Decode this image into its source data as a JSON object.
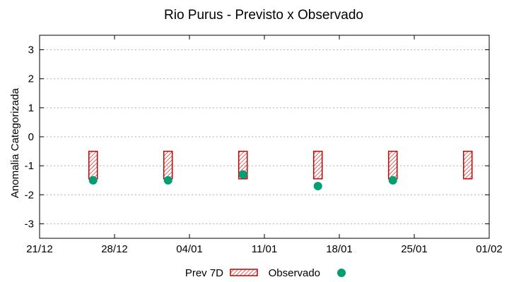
{
  "chart_data": {
    "type": "bar",
    "title": "Rio Purus - Previsto x Observado",
    "xlabel": "",
    "ylabel": "Anomalia Categorizada",
    "ylim": [
      -3.5,
      3.5
    ],
    "yticks": [
      3,
      2,
      1,
      0,
      -1,
      -2,
      -3
    ],
    "ytick_labels": [
      "3",
      "2",
      "1",
      "0",
      "-1",
      "-2",
      "-3"
    ],
    "xlim": [
      "2023-12-21",
      "2024-02-01"
    ],
    "xtick_labels": [
      "21/12",
      "28/12",
      "04/01",
      "11/01",
      "18/01",
      "25/01",
      "01/02"
    ],
    "grid": true,
    "legend_position": "bottom",
    "series": [
      {
        "name": "Prev 7D",
        "kind": "floating-bar",
        "color": "#cc0000",
        "fill": "hatched",
        "x": [
          "2023-12-26",
          "2024-01-02",
          "2024-01-09",
          "2024-01-16",
          "2024-01-23",
          "2024-01-30"
        ],
        "low": [
          -1.45,
          -1.45,
          -1.45,
          -1.45,
          -1.45,
          -1.45
        ],
        "high": [
          -0.5,
          -0.5,
          -0.5,
          -0.5,
          -0.5,
          -0.5
        ]
      },
      {
        "name": "Observado",
        "kind": "points",
        "color": "#009e73",
        "x": [
          "2023-12-26",
          "2024-01-02",
          "2024-01-09",
          "2024-01-16",
          "2024-01-23"
        ],
        "y": [
          -1.5,
          -1.5,
          -1.3,
          -1.7,
          -1.5
        ]
      }
    ]
  }
}
